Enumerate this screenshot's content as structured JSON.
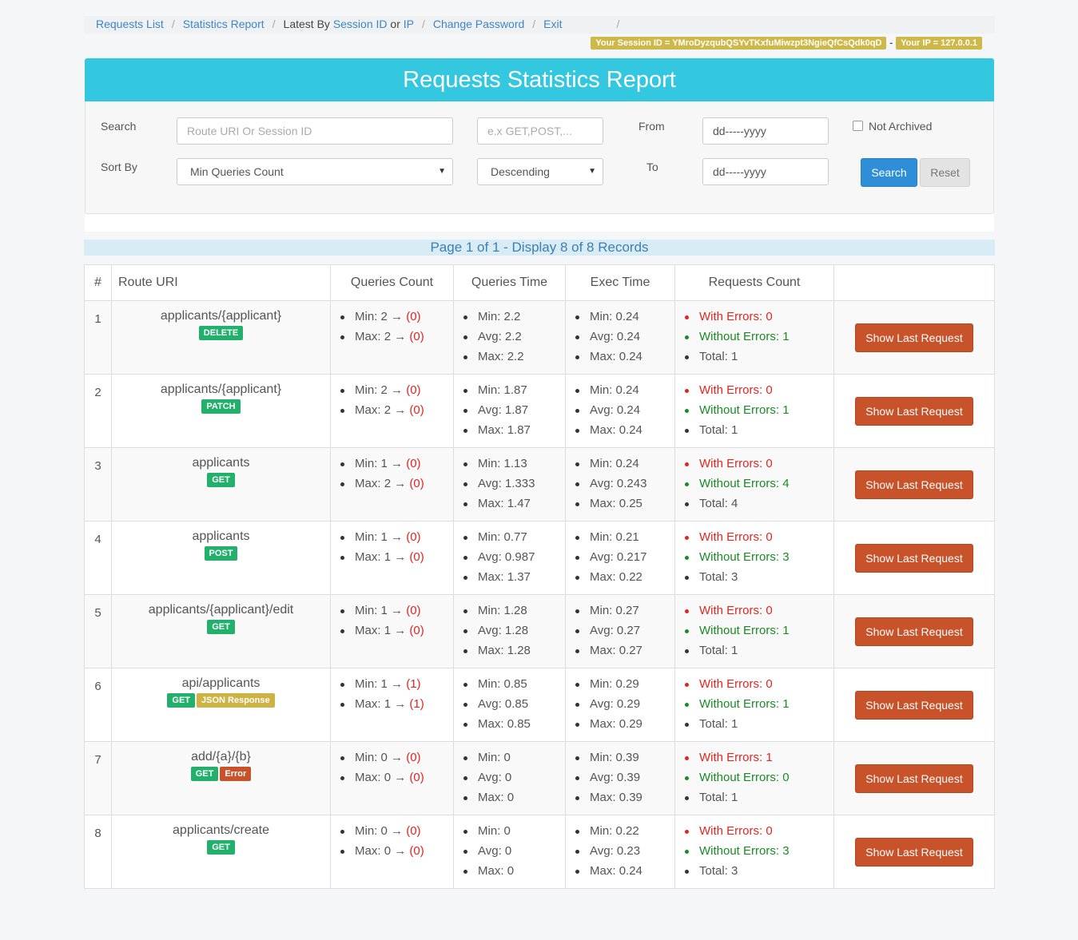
{
  "breadcrumb": {
    "requests_list": "Requests List",
    "statistics_report": "Statistics Report",
    "latest_by": "Latest By",
    "session_id": "Session ID",
    "or": "or",
    "ip": "IP",
    "change_password": "Change Password",
    "exit": "Exit"
  },
  "session": {
    "session_label": "Your Session ID = YMroDyzqubQSYvTKxfuMiwzpt3NgieQfCsQdk0qD",
    "ip_label": "Your IP = 127.0.0.1"
  },
  "header": {
    "title": "Requests Statistics Report"
  },
  "filters": {
    "search_label": "Search",
    "search_placeholder": "Route URI Or Session ID",
    "method_placeholder": "e.x GET,POST,...",
    "from_label": "From",
    "from_value": "dd-----yyyy",
    "not_archived_label": "Not Archived",
    "sort_label": "Sort By",
    "sort_value": "Min Queries Count",
    "order_value": "Descending",
    "to_label": "To",
    "to_value": "dd-----yyyy",
    "search_button": "Search",
    "reset_button": "Reset"
  },
  "pagination": {
    "text": "Page 1 of 1 - Display 8 of 8 Records"
  },
  "table": {
    "headers": [
      "#",
      "Route URI",
      "Queries Count",
      "Queries Time",
      "Exec Time",
      "Requests Count",
      ""
    ],
    "labels": {
      "min": "Min:",
      "max": "Max:",
      "avg": "Avg:",
      "with_errors": "With Errors:",
      "without_errors": "Without Errors:",
      "total": "Total:",
      "arrow": "→",
      "show_last": "Show Last Request"
    },
    "rows": [
      {
        "n": "1",
        "route": "applicants/{applicant}",
        "badges": [
          {
            "t": "DELETE",
            "c": "green"
          }
        ],
        "q_min": "2",
        "q_min_p": "(0)",
        "q_max": "2",
        "q_max_p": "(0)",
        "qt": [
          "2.2",
          "2.2",
          "2.2"
        ],
        "et": [
          "0.24",
          "0.24",
          "0.24"
        ],
        "rc": [
          "0",
          "1",
          "1"
        ]
      },
      {
        "n": "2",
        "route": "applicants/{applicant}",
        "badges": [
          {
            "t": "PATCH",
            "c": "green"
          }
        ],
        "q_min": "2",
        "q_min_p": "(0)",
        "q_max": "2",
        "q_max_p": "(0)",
        "qt": [
          "1.87",
          "1.87",
          "1.87"
        ],
        "et": [
          "0.24",
          "0.24",
          "0.24"
        ],
        "rc": [
          "0",
          "1",
          "1"
        ]
      },
      {
        "n": "3",
        "route": "applicants",
        "badges": [
          {
            "t": "GET",
            "c": "green"
          }
        ],
        "q_min": "1",
        "q_min_p": "(0)",
        "q_max": "2",
        "q_max_p": "(0)",
        "qt": [
          "1.13",
          "1.333",
          "1.47"
        ],
        "et": [
          "0.24",
          "0.243",
          "0.25"
        ],
        "rc": [
          "0",
          "4",
          "4"
        ]
      },
      {
        "n": "4",
        "route": "applicants",
        "badges": [
          {
            "t": "POST",
            "c": "green"
          }
        ],
        "q_min": "1",
        "q_min_p": "(0)",
        "q_max": "1",
        "q_max_p": "(0)",
        "qt": [
          "0.77",
          "0.987",
          "1.37"
        ],
        "et": [
          "0.21",
          "0.217",
          "0.22"
        ],
        "rc": [
          "0",
          "3",
          "3"
        ]
      },
      {
        "n": "5",
        "route": "applicants/{applicant}/edit",
        "badges": [
          {
            "t": "GET",
            "c": "green"
          }
        ],
        "q_min": "1",
        "q_min_p": "(0)",
        "q_max": "1",
        "q_max_p": "(0)",
        "qt": [
          "1.28",
          "1.28",
          "1.28"
        ],
        "et": [
          "0.27",
          "0.27",
          "0.27"
        ],
        "rc": [
          "0",
          "1",
          "1"
        ]
      },
      {
        "n": "6",
        "route": "api/applicants",
        "badges": [
          {
            "t": "GET",
            "c": "green"
          },
          {
            "t": "JSON Response",
            "c": "yellow"
          }
        ],
        "q_min": "1",
        "q_min_p": "(1)",
        "q_max": "1",
        "q_max_p": "(1)",
        "qt": [
          "0.85",
          "0.85",
          "0.85"
        ],
        "et": [
          "0.29",
          "0.29",
          "0.29"
        ],
        "rc": [
          "0",
          "1",
          "1"
        ]
      },
      {
        "n": "7",
        "route": "add/{a}/{b}",
        "badges": [
          {
            "t": "GET",
            "c": "green"
          },
          {
            "t": "Error",
            "c": "red"
          }
        ],
        "q_min": "0",
        "q_min_p": "(0)",
        "q_max": "0",
        "q_max_p": "(0)",
        "qt": [
          "0",
          "0",
          "0"
        ],
        "et": [
          "0.39",
          "0.39",
          "0.39"
        ],
        "rc": [
          "1",
          "0",
          "1"
        ]
      },
      {
        "n": "8",
        "route": "applicants/create",
        "badges": [
          {
            "t": "GET",
            "c": "green"
          }
        ],
        "q_min": "0",
        "q_min_p": "(0)",
        "q_max": "0",
        "q_max_p": "(0)",
        "qt": [
          "0",
          "0",
          "0"
        ],
        "et": [
          "0.22",
          "0.23",
          "0.24"
        ],
        "rc": [
          "0",
          "3",
          "3"
        ]
      }
    ]
  },
  "colors": {
    "banner": "#33c7e0",
    "search_button": "#2f8fd6",
    "action_button": "#c8522a",
    "badge_green": "#23b06d",
    "badge_yellow": "#cdb244",
    "error_red": "#e3251f",
    "success_green": "#1a8a24"
  }
}
